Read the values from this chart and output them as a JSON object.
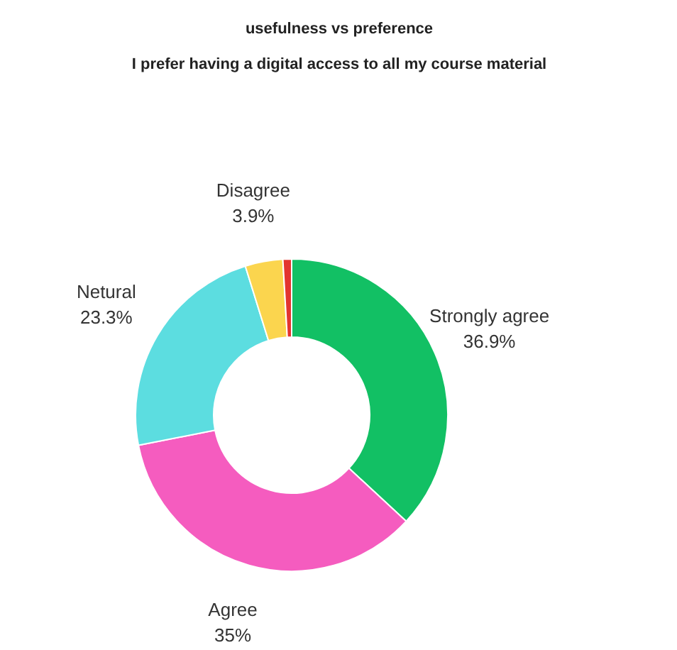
{
  "chart_data": {
    "type": "donut",
    "title": "usefulness vs preference",
    "subtitle": "I prefer having a digital access to all my course material",
    "categories": [
      "Strongly agree",
      "Agree",
      "Netural",
      "Disagree",
      null
    ],
    "values": [
      36.9,
      35,
      23.3,
      3.9,
      0.9
    ],
    "colors": [
      "#12c064",
      "#f55cbf",
      "#5cdde0",
      "#fbd54e",
      "#e3342f"
    ],
    "value_labels": [
      "36.9%",
      "35%",
      "23.3%",
      "3.9%",
      null
    ]
  }
}
